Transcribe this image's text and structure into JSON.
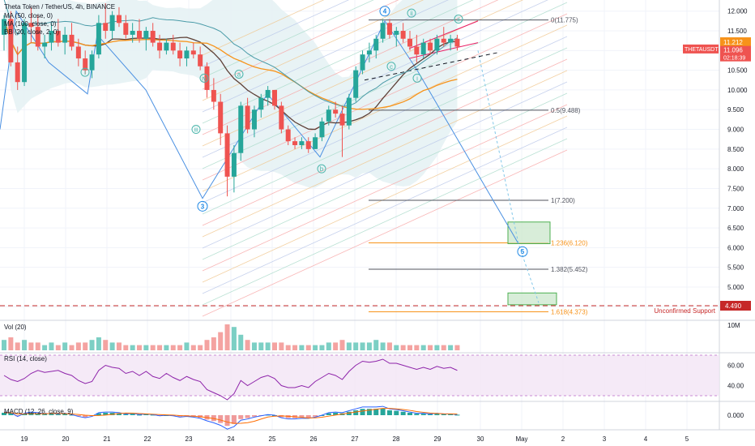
{
  "chart_data": {
    "type": "candlestick",
    "header": {
      "symbol": "Theta Token / TetherUS",
      "interval": "4h",
      "exchange": "BINANCE",
      "indicators": [
        "MA (50, close, 0)",
        "MA (100, close, 0)",
        "BB (20, close, 2, 0)"
      ]
    },
    "price_axis": {
      "range": [
        4.3,
        12.2
      ],
      "ticks": [
        "12.000",
        "11.500",
        "11.000",
        "10.500",
        "10.000",
        "9.500",
        "9.000",
        "8.500",
        "8.000",
        "7.500",
        "7.000",
        "6.500",
        "6.000",
        "5.500",
        "5.000",
        "4.500"
      ]
    },
    "time_axis": {
      "labels": [
        "19",
        "20",
        "21",
        "22",
        "23",
        "24",
        "25",
        "26",
        "27",
        "28",
        "29",
        "30",
        "May",
        "2",
        "3",
        "4",
        "5"
      ]
    },
    "price_labels": {
      "last": "11.096",
      "last_symbol": "THETAUSDT",
      "countdown": "02:18:39",
      "ma50": "11.212",
      "support": "4.490"
    },
    "fib_levels": [
      {
        "ratio": "0",
        "price": 11.775,
        "label": "0(11.775)",
        "color": "#50535e"
      },
      {
        "ratio": "0.5",
        "price": 9.488,
        "label": "0.5(9.488)",
        "color": "#50535e"
      },
      {
        "ratio": "1",
        "price": 7.2,
        "label": "1(7.200)",
        "color": "#50535e"
      },
      {
        "ratio": "1.236",
        "price": 6.12,
        "label": "1.236(6.120)",
        "color": "#f7931a"
      },
      {
        "ratio": "1.382",
        "price": 5.452,
        "label": "1.382(5.452)",
        "color": "#50535e"
      },
      {
        "ratio": "1.618",
        "price": 4.373,
        "label": "1.618(4.373)",
        "color": "#f7931a"
      }
    ],
    "annotations": {
      "support_text": "Unconfirmed Support",
      "waves": [
        "i",
        "iii",
        "iv",
        "3",
        "a",
        "b",
        "4",
        "ii",
        "c",
        "i",
        "ii",
        "5"
      ]
    },
    "candles": [
      [
        11.4,
        11.9,
        11.0,
        11.8
      ],
      [
        11.8,
        12.0,
        10.6,
        10.7
      ],
      [
        10.7,
        11.1,
        10.0,
        10.2
      ],
      [
        10.2,
        11.8,
        10.1,
        11.7
      ],
      [
        11.7,
        12.1,
        11.2,
        11.6
      ],
      [
        11.6,
        11.9,
        11.0,
        11.1
      ],
      [
        11.1,
        11.4,
        10.8,
        11.2
      ],
      [
        11.2,
        11.7,
        11.0,
        11.5
      ],
      [
        11.5,
        11.8,
        11.1,
        11.2
      ],
      [
        11.2,
        11.6,
        10.9,
        11.4
      ],
      [
        11.4,
        11.7,
        11.0,
        11.1
      ],
      [
        11.1,
        11.3,
        10.6,
        10.8
      ],
      [
        10.8,
        11.0,
        10.4,
        10.5
      ],
      [
        10.5,
        11.0,
        10.3,
        10.9
      ],
      [
        10.9,
        11.9,
        10.8,
        11.7
      ],
      [
        11.7,
        12.2,
        11.3,
        11.5
      ],
      [
        11.5,
        12.0,
        11.3,
        11.9
      ],
      [
        11.9,
        12.1,
        11.6,
        11.7
      ],
      [
        11.7,
        11.9,
        11.3,
        11.4
      ],
      [
        11.4,
        11.7,
        11.2,
        11.5
      ],
      [
        11.5,
        11.8,
        11.2,
        11.3
      ],
      [
        11.3,
        11.6,
        11.0,
        11.5
      ],
      [
        11.5,
        11.7,
        11.1,
        11.2
      ],
      [
        11.2,
        11.4,
        10.8,
        11.0
      ],
      [
        11.0,
        11.3,
        10.9,
        11.2
      ],
      [
        11.2,
        11.4,
        10.9,
        11.0
      ],
      [
        11.0,
        11.2,
        10.6,
        10.8
      ],
      [
        10.8,
        11.1,
        10.6,
        11.0
      ],
      [
        11.0,
        11.2,
        10.8,
        10.9
      ],
      [
        10.9,
        11.1,
        10.5,
        10.6
      ],
      [
        10.6,
        10.7,
        9.8,
        10.0
      ],
      [
        10.0,
        10.3,
        9.5,
        9.7
      ],
      [
        9.7,
        9.9,
        8.6,
        8.9
      ],
      [
        8.9,
        9.1,
        7.3,
        7.8
      ],
      [
        7.8,
        8.6,
        7.4,
        8.4
      ],
      [
        8.4,
        9.7,
        8.2,
        9.6
      ],
      [
        9.6,
        9.8,
        8.9,
        9.0
      ],
      [
        9.0,
        9.6,
        8.8,
        9.5
      ],
      [
        9.5,
        9.9,
        9.3,
        9.8
      ],
      [
        9.8,
        10.1,
        9.6,
        10.0
      ],
      [
        10.0,
        10.0,
        9.5,
        9.6
      ],
      [
        9.6,
        9.7,
        8.9,
        9.0
      ],
      [
        9.0,
        9.1,
        8.6,
        8.7
      ],
      [
        8.7,
        8.8,
        8.5,
        8.6
      ],
      [
        8.6,
        8.8,
        8.5,
        8.7
      ],
      [
        8.7,
        8.8,
        8.4,
        8.5
      ],
      [
        8.5,
        8.9,
        8.5,
        8.8
      ],
      [
        8.8,
        9.3,
        8.7,
        9.2
      ],
      [
        9.2,
        9.6,
        9.1,
        9.5
      ],
      [
        9.5,
        9.7,
        9.3,
        9.4
      ],
      [
        9.4,
        9.6,
        8.3,
        9.1
      ],
      [
        9.1,
        9.9,
        9.0,
        9.8
      ],
      [
        9.8,
        10.6,
        9.7,
        10.5
      ],
      [
        10.5,
        11.0,
        10.4,
        10.9
      ],
      [
        10.9,
        11.2,
        10.7,
        11.0
      ],
      [
        11.0,
        11.4,
        10.8,
        11.3
      ],
      [
        11.3,
        11.8,
        11.2,
        11.7
      ],
      [
        11.7,
        11.8,
        11.3,
        11.4
      ],
      [
        11.4,
        11.6,
        11.1,
        11.5
      ],
      [
        11.5,
        11.7,
        11.2,
        11.3
      ],
      [
        11.3,
        11.5,
        11.0,
        11.1
      ],
      [
        11.1,
        11.4,
        10.7,
        10.9
      ],
      [
        10.9,
        11.3,
        10.8,
        11.2
      ],
      [
        11.2,
        11.3,
        10.9,
        11.0
      ],
      [
        11.0,
        11.4,
        10.9,
        11.3
      ],
      [
        11.3,
        11.6,
        11.1,
        11.2
      ],
      [
        11.2,
        11.4,
        11.0,
        11.3
      ],
      [
        11.3,
        11.4,
        11.0,
        11.1
      ]
    ],
    "volume_panel": {
      "title": "Vol (20)",
      "axis_label": "10M",
      "values": [
        4,
        5,
        3,
        4,
        3,
        3,
        2,
        3,
        2,
        3,
        2,
        3,
        3,
        4,
        5,
        4,
        3,
        3,
        2,
        2,
        2,
        2,
        2,
        2,
        2,
        2,
        2,
        3,
        2,
        2,
        4,
        5,
        7,
        10,
        9,
        6,
        4,
        3,
        3,
        3,
        3,
        3,
        2,
        2,
        2,
        2,
        2,
        2,
        3,
        3,
        4,
        3,
        3,
        3,
        3,
        4,
        3,
        3,
        2,
        2,
        2,
        2,
        2,
        2,
        2,
        2,
        2,
        2
      ]
    },
    "rsi_panel": {
      "title": "RSI (14, close)",
      "ticks": [
        "60.00",
        "40.00"
      ],
      "values": [
        50,
        46,
        44,
        47,
        52,
        55,
        53,
        54,
        55,
        52,
        50,
        45,
        42,
        44,
        55,
        60,
        58,
        57,
        52,
        54,
        50,
        54,
        49,
        47,
        52,
        48,
        45,
        49,
        46,
        44,
        36,
        33,
        30,
        26,
        32,
        45,
        40,
        44,
        48,
        50,
        47,
        40,
        38,
        38,
        40,
        38,
        44,
        48,
        52,
        50,
        46,
        54,
        60,
        64,
        63,
        64,
        66,
        62,
        62,
        60,
        58,
        56,
        58,
        56,
        59,
        57,
        58,
        55
      ]
    },
    "macd_panel": {
      "title": "MACD (12, 26, close, 9)",
      "ticks": [
        "0.000"
      ],
      "hist": [
        0.05,
        0.04,
        -0.02,
        0.03,
        0.05,
        0.04,
        0.02,
        0.03,
        0.02,
        0.03,
        0.01,
        -0.02,
        -0.04,
        -0.02,
        0.04,
        0.05,
        0.05,
        0.04,
        0.02,
        0.03,
        0.01,
        0.02,
        0.01,
        -0.01,
        0.0,
        -0.01,
        -0.03,
        -0.02,
        -0.03,
        -0.05,
        -0.09,
        -0.12,
        -0.16,
        -0.22,
        -0.18,
        -0.08,
        -0.06,
        -0.03,
        -0.01,
        0.01,
        0.0,
        -0.04,
        -0.06,
        -0.06,
        -0.05,
        -0.05,
        -0.03,
        0.0,
        0.04,
        0.05,
        0.04,
        0.07,
        0.1,
        0.13,
        0.13,
        0.13,
        0.14,
        0.1,
        0.09,
        0.07,
        0.05,
        0.03,
        0.03,
        0.02,
        0.03,
        0.02,
        0.02,
        0.01
      ]
    }
  }
}
